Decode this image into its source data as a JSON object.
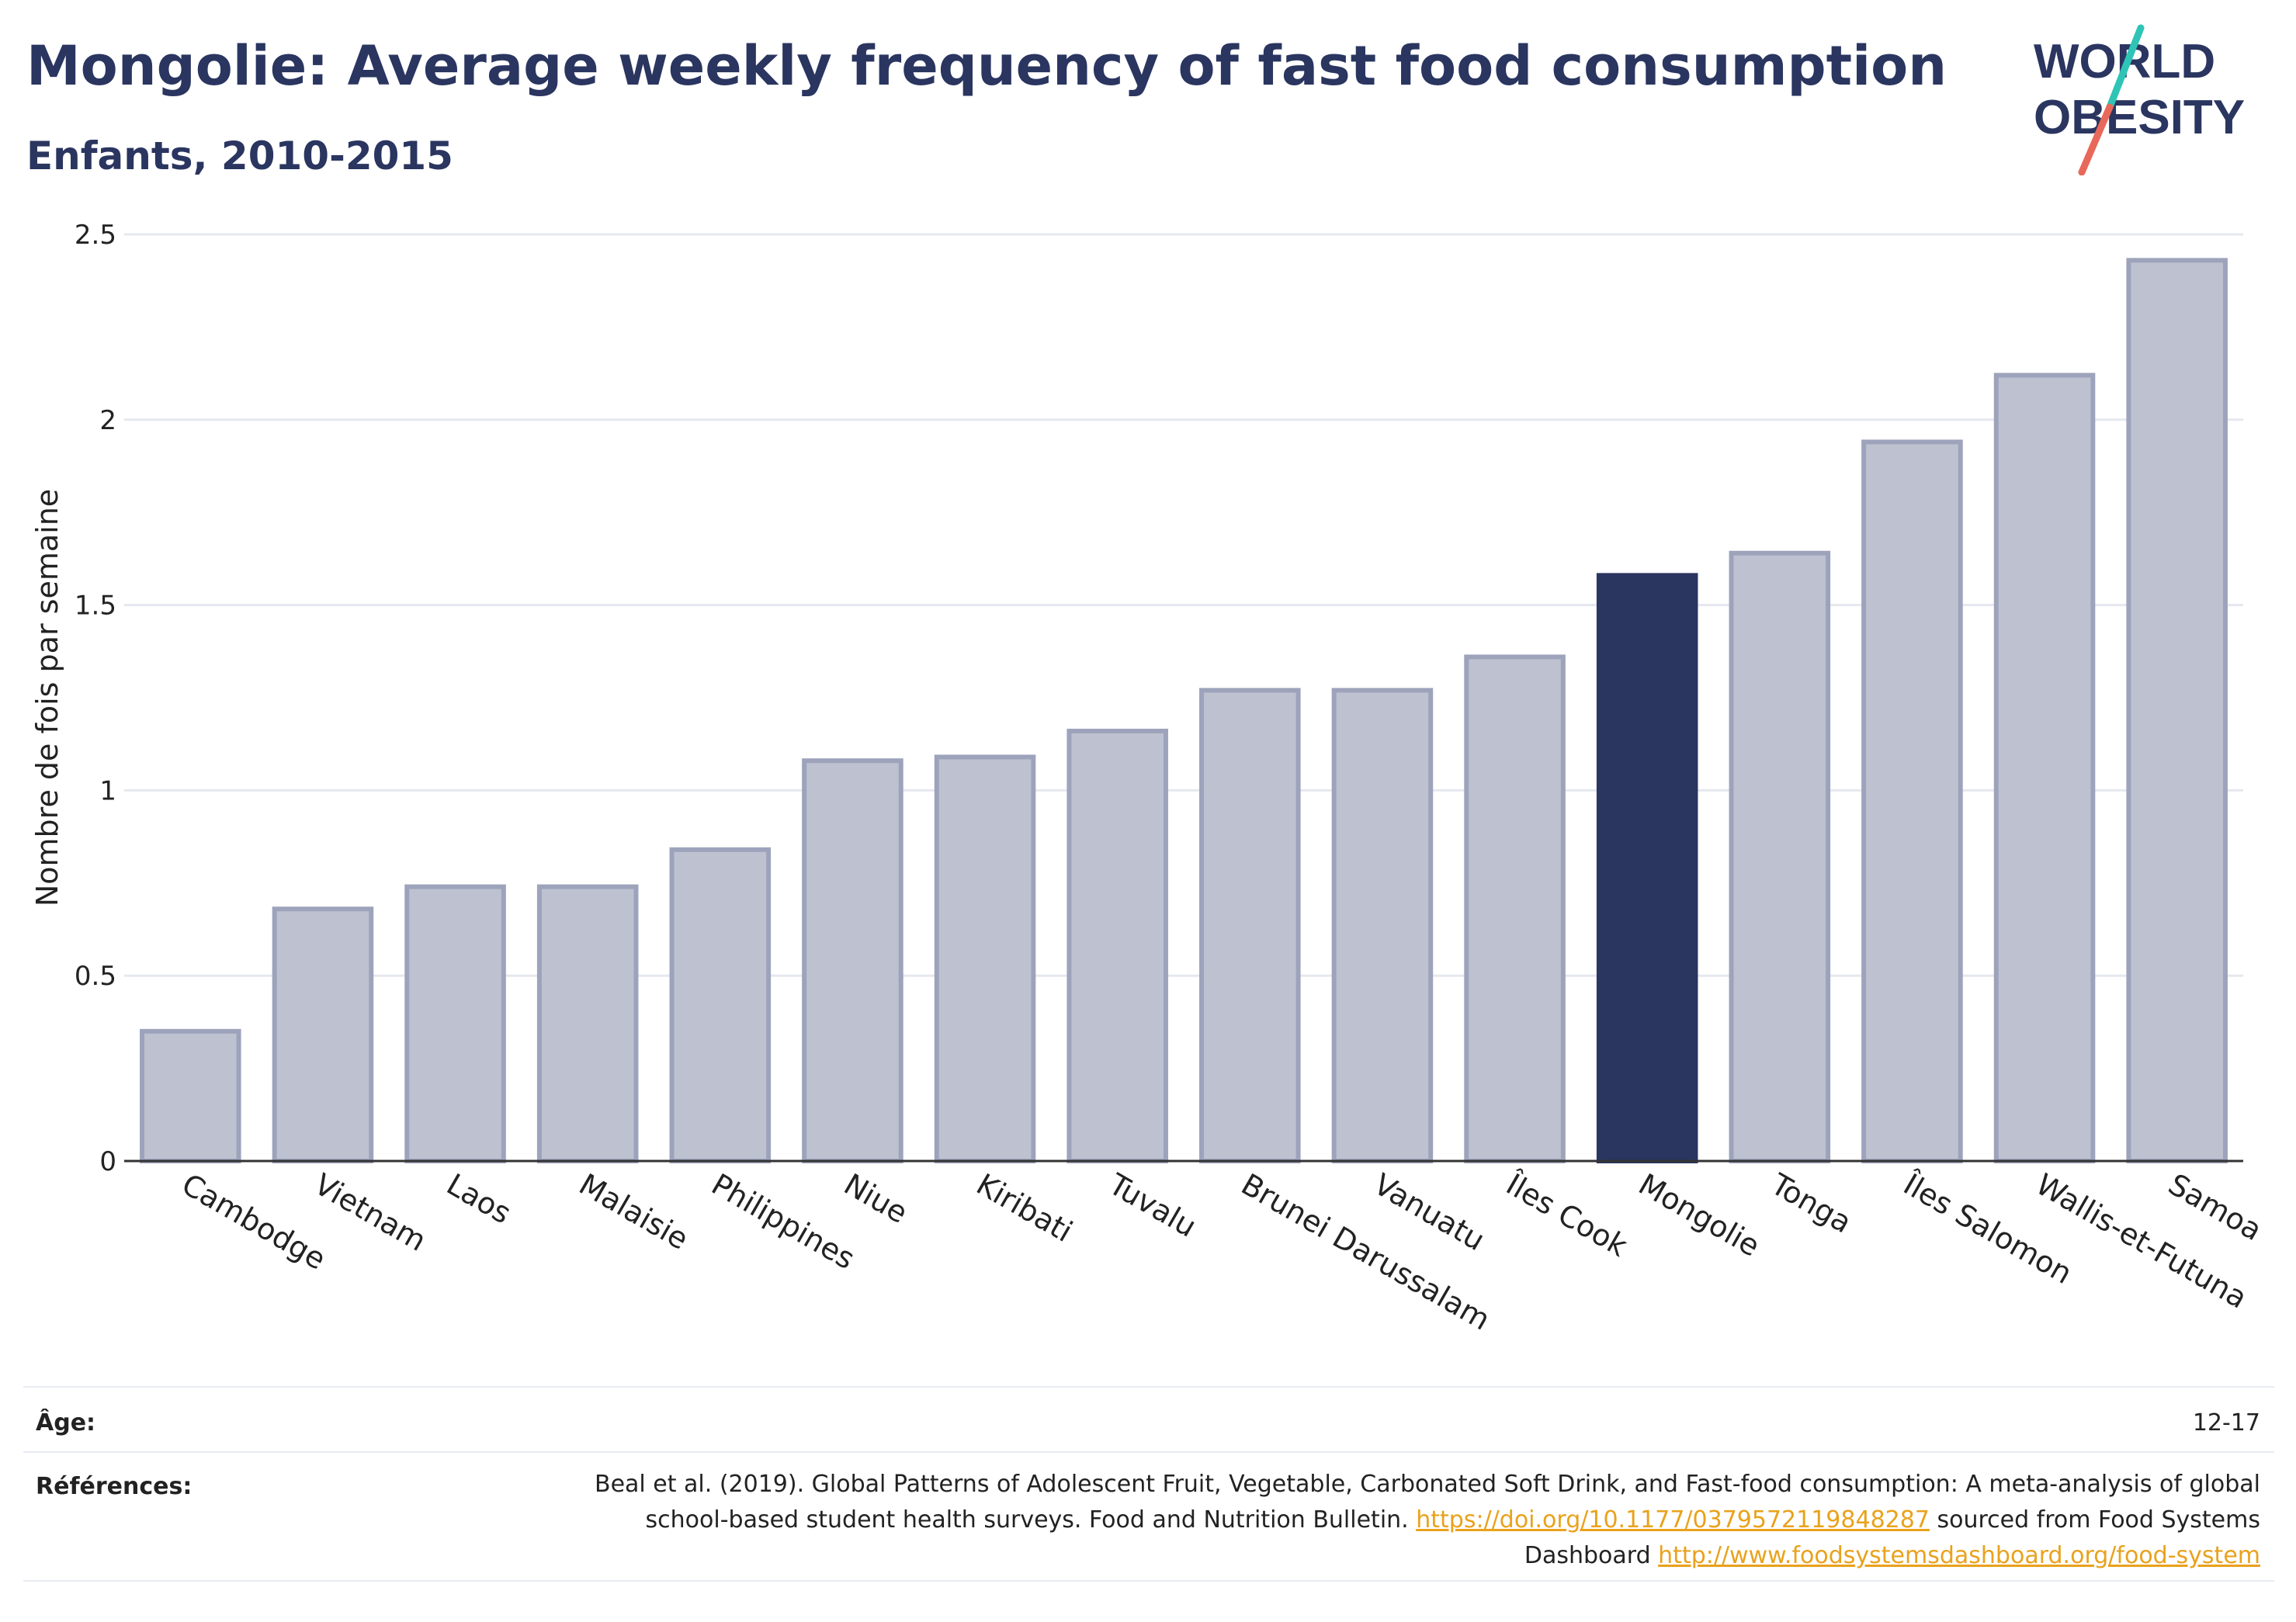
{
  "header": {
    "title": "Mongolie: Average weekly frequency of fast food consumption",
    "subtitle": "Enfants, 2010-2015"
  },
  "logo": {
    "line1": "WORLD",
    "line2": "OBESITY",
    "colors": {
      "text": "#2a3560",
      "slash_teal": "#2ec4b6",
      "slash_red": "#e8685a"
    }
  },
  "colors": {
    "bar_default": "#bec2d0",
    "bar_default_border": "#9da3bb",
    "bar_highlight": "#2a3560",
    "grid": "#e6e8ef",
    "axis": "#333333",
    "text": "#222222"
  },
  "chart_data": {
    "type": "bar",
    "categories": [
      "Cambodge",
      "Vietnam",
      "Laos",
      "Malaisie",
      "Philippines",
      "Niue",
      "Kiribati",
      "Tuvalu",
      "Brunei Darussalam",
      "Vanuatu",
      "Îles Cook",
      "Mongolie",
      "Tonga",
      "Îles Salomon",
      "Wallis-et-Futuna",
      "Samoa"
    ],
    "values": [
      0.35,
      0.68,
      0.74,
      0.74,
      0.84,
      1.08,
      1.09,
      1.16,
      1.27,
      1.27,
      1.36,
      1.58,
      1.64,
      1.94,
      2.12,
      2.43
    ],
    "highlight": "Mongolie",
    "ylabel": "Nombre de fois par semaine",
    "xlabel": "",
    "ylim": [
      0,
      2.5
    ],
    "yticks": [
      0,
      0.5,
      1,
      1.5,
      2,
      2.5
    ],
    "ytick_labels": [
      "0",
      "0.5",
      "1",
      "1.5",
      "2",
      "2.5"
    ],
    "grid": true
  },
  "meta": {
    "age_label": "Âge:",
    "age_value": "12-17",
    "ref_label": "Références:",
    "ref_text_1": "Beal et al. (2019). Global Patterns of Adolescent Fruit, Vegetable, Carbonated Soft Drink, and Fast-food consumption: A meta-analysis of global school-based student health surveys. Food and Nutrition Bulletin. ",
    "ref_link_1": "https://doi.org/10.1177/0379572119848287",
    "ref_text_2": " sourced from Food Systems Dashboard ",
    "ref_link_2": "http://www.foodsystemsdashboard.org/food-system"
  }
}
